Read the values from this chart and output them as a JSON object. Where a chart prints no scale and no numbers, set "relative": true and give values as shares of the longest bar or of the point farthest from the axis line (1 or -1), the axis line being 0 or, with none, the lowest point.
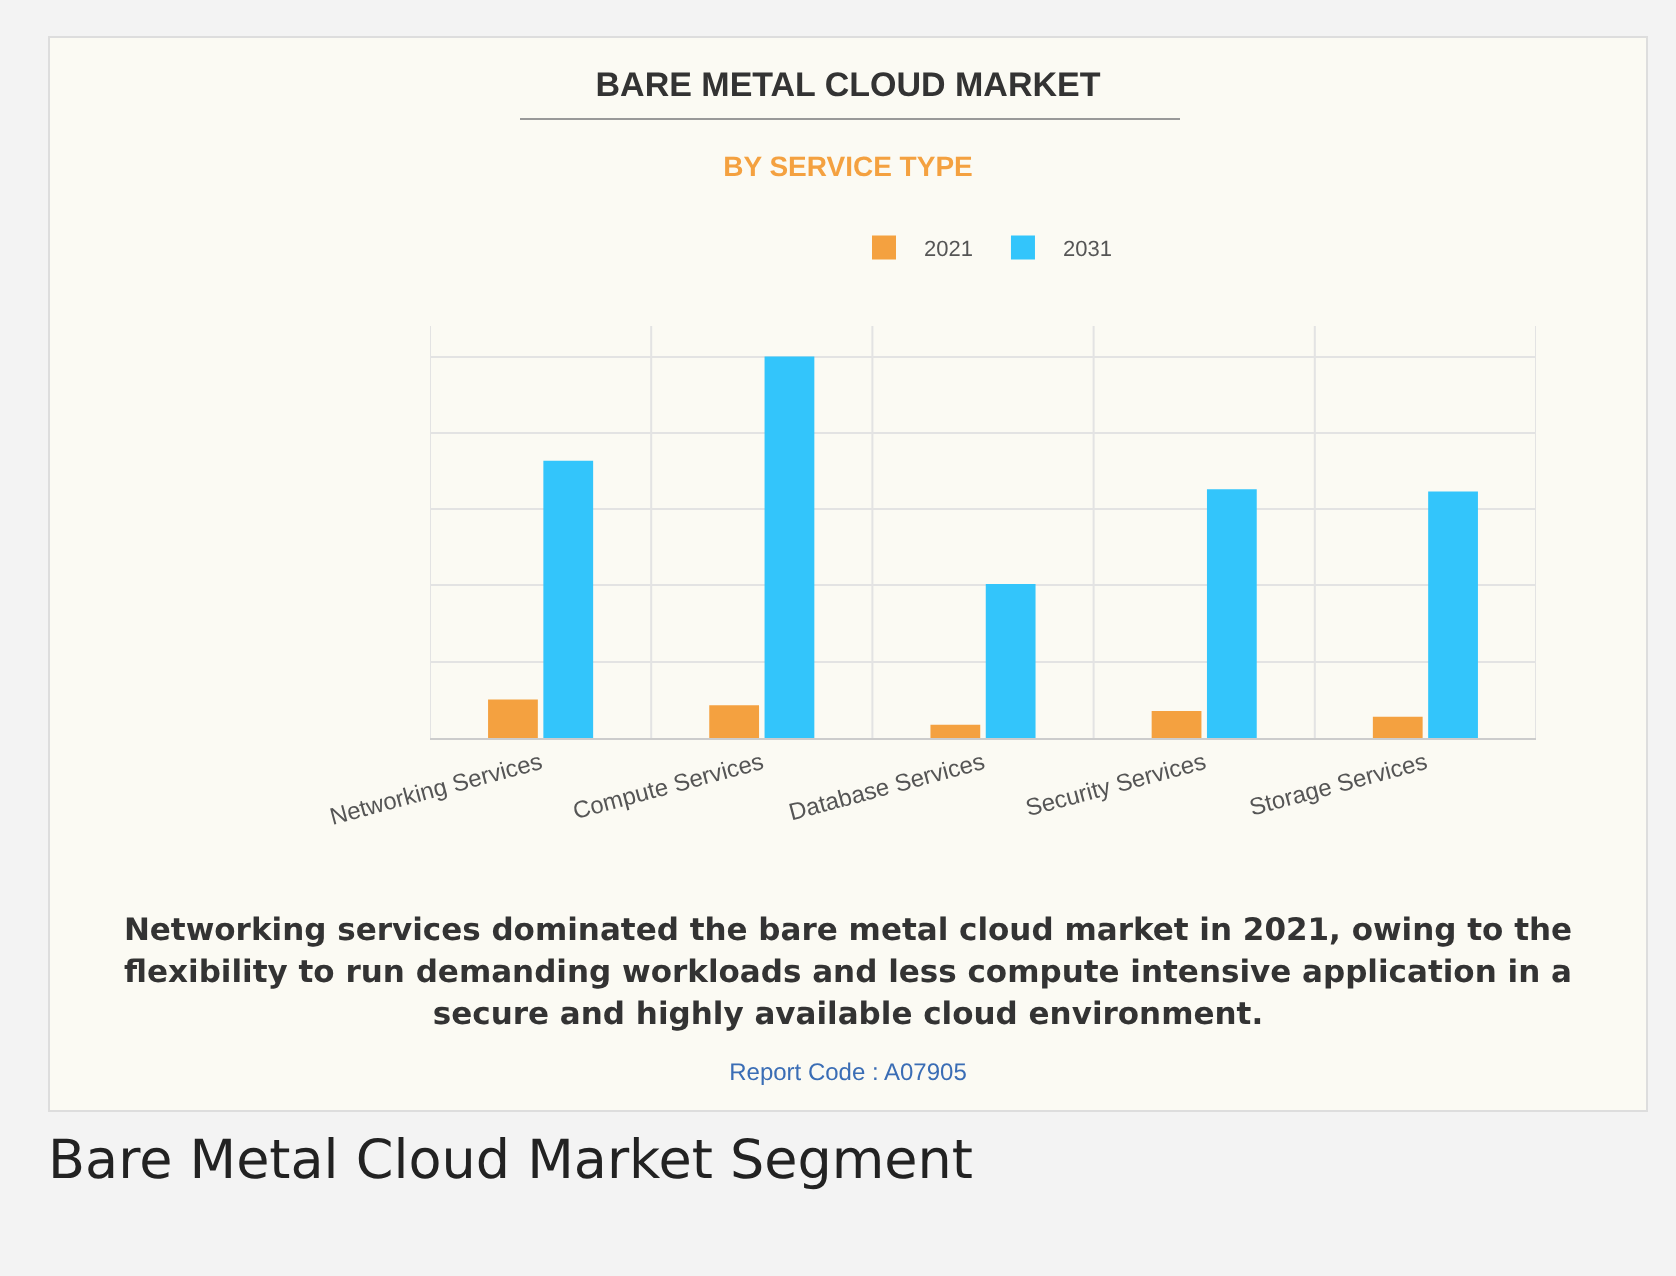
{
  "chart_data": {
    "type": "bar",
    "title": "BARE METAL CLOUD MARKET",
    "subtitle": "BY SERVICE TYPE",
    "categories": [
      "Networking Services",
      "Compute Services",
      "Database Services",
      "Security Services",
      "Storage Services"
    ],
    "series": [
      {
        "name": "2021",
        "color": "#f4a140",
        "values": [
          0.101,
          0.086,
          0.035,
          0.071,
          0.056
        ]
      },
      {
        "name": "2031",
        "color": "#33c5fb",
        "values": [
          0.727,
          1,
          0.404,
          0.652,
          0.646
        ]
      }
    ],
    "relative": true,
    "grid": true,
    "legend": "top",
    "annotations": [
      "Networking services dominated the bare metal cloud market in 2021, owing to the flexibility to run demanding workloads and less compute intensive application in a secure and highly available cloud environment.",
      "Report Code : A07905",
      "Bare Metal Cloud Market Segment"
    ]
  }
}
